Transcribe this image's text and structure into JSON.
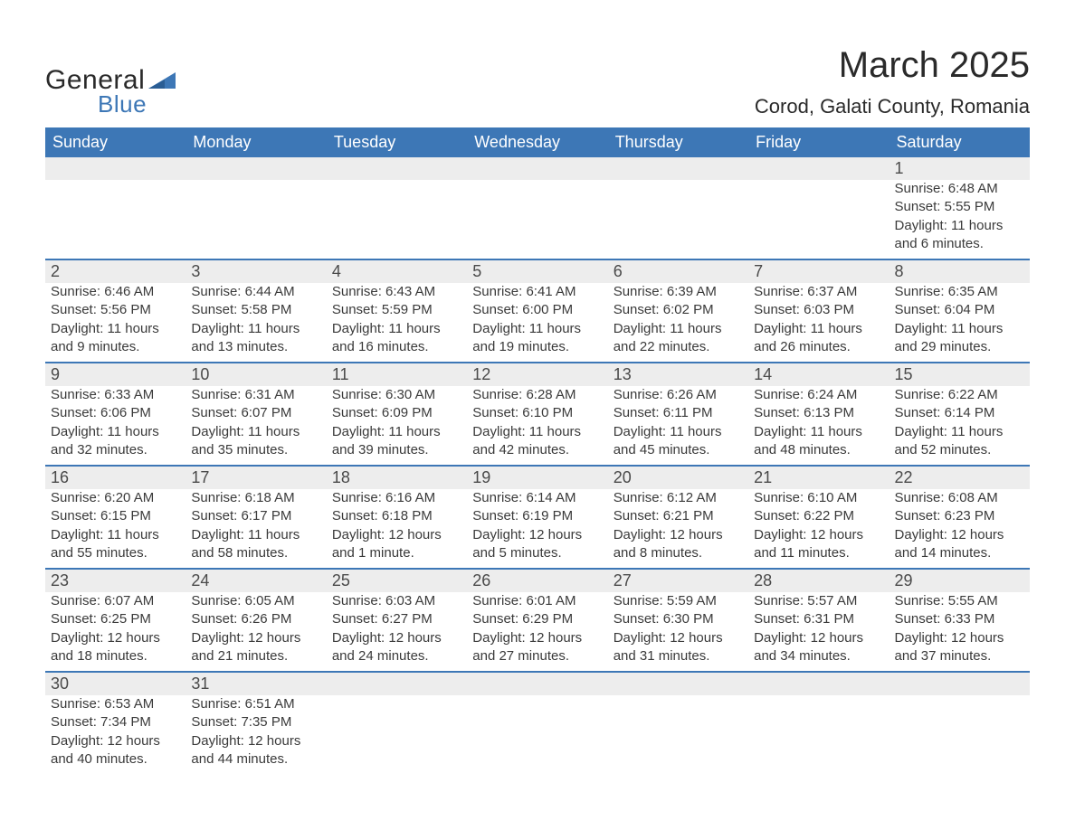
{
  "brand": {
    "word1": "General",
    "word2": "Blue",
    "accent": "#3d77b6"
  },
  "header": {
    "title": "March 2025",
    "location": "Corod, Galati County, Romania",
    "title_fontsize": 40,
    "location_fontsize": 22,
    "text_color": "#2a2a2a"
  },
  "calendar": {
    "header_bg": "#3d77b6",
    "header_text_color": "#ffffff",
    "numrow_bg": "#ededed",
    "row_divider_color": "#3d77b6",
    "cell_text_color": "#3a3a3a",
    "daynum_fontsize": 18,
    "body_fontsize": 15,
    "columns": [
      "Sunday",
      "Monday",
      "Tuesday",
      "Wednesday",
      "Thursday",
      "Friday",
      "Saturday"
    ],
    "weeks": [
      [
        null,
        null,
        null,
        null,
        null,
        null,
        {
          "n": "1",
          "sunrise": "Sunrise: 6:48 AM",
          "sunset": "Sunset: 5:55 PM",
          "dl1": "Daylight: 11 hours",
          "dl2": "and 6 minutes."
        }
      ],
      [
        {
          "n": "2",
          "sunrise": "Sunrise: 6:46 AM",
          "sunset": "Sunset: 5:56 PM",
          "dl1": "Daylight: 11 hours",
          "dl2": "and 9 minutes."
        },
        {
          "n": "3",
          "sunrise": "Sunrise: 6:44 AM",
          "sunset": "Sunset: 5:58 PM",
          "dl1": "Daylight: 11 hours",
          "dl2": "and 13 minutes."
        },
        {
          "n": "4",
          "sunrise": "Sunrise: 6:43 AM",
          "sunset": "Sunset: 5:59 PM",
          "dl1": "Daylight: 11 hours",
          "dl2": "and 16 minutes."
        },
        {
          "n": "5",
          "sunrise": "Sunrise: 6:41 AM",
          "sunset": "Sunset: 6:00 PM",
          "dl1": "Daylight: 11 hours",
          "dl2": "and 19 minutes."
        },
        {
          "n": "6",
          "sunrise": "Sunrise: 6:39 AM",
          "sunset": "Sunset: 6:02 PM",
          "dl1": "Daylight: 11 hours",
          "dl2": "and 22 minutes."
        },
        {
          "n": "7",
          "sunrise": "Sunrise: 6:37 AM",
          "sunset": "Sunset: 6:03 PM",
          "dl1": "Daylight: 11 hours",
          "dl2": "and 26 minutes."
        },
        {
          "n": "8",
          "sunrise": "Sunrise: 6:35 AM",
          "sunset": "Sunset: 6:04 PM",
          "dl1": "Daylight: 11 hours",
          "dl2": "and 29 minutes."
        }
      ],
      [
        {
          "n": "9",
          "sunrise": "Sunrise: 6:33 AM",
          "sunset": "Sunset: 6:06 PM",
          "dl1": "Daylight: 11 hours",
          "dl2": "and 32 minutes."
        },
        {
          "n": "10",
          "sunrise": "Sunrise: 6:31 AM",
          "sunset": "Sunset: 6:07 PM",
          "dl1": "Daylight: 11 hours",
          "dl2": "and 35 minutes."
        },
        {
          "n": "11",
          "sunrise": "Sunrise: 6:30 AM",
          "sunset": "Sunset: 6:09 PM",
          "dl1": "Daylight: 11 hours",
          "dl2": "and 39 minutes."
        },
        {
          "n": "12",
          "sunrise": "Sunrise: 6:28 AM",
          "sunset": "Sunset: 6:10 PM",
          "dl1": "Daylight: 11 hours",
          "dl2": "and 42 minutes."
        },
        {
          "n": "13",
          "sunrise": "Sunrise: 6:26 AM",
          "sunset": "Sunset: 6:11 PM",
          "dl1": "Daylight: 11 hours",
          "dl2": "and 45 minutes."
        },
        {
          "n": "14",
          "sunrise": "Sunrise: 6:24 AM",
          "sunset": "Sunset: 6:13 PM",
          "dl1": "Daylight: 11 hours",
          "dl2": "and 48 minutes."
        },
        {
          "n": "15",
          "sunrise": "Sunrise: 6:22 AM",
          "sunset": "Sunset: 6:14 PM",
          "dl1": "Daylight: 11 hours",
          "dl2": "and 52 minutes."
        }
      ],
      [
        {
          "n": "16",
          "sunrise": "Sunrise: 6:20 AM",
          "sunset": "Sunset: 6:15 PM",
          "dl1": "Daylight: 11 hours",
          "dl2": "and 55 minutes."
        },
        {
          "n": "17",
          "sunrise": "Sunrise: 6:18 AM",
          "sunset": "Sunset: 6:17 PM",
          "dl1": "Daylight: 11 hours",
          "dl2": "and 58 minutes."
        },
        {
          "n": "18",
          "sunrise": "Sunrise: 6:16 AM",
          "sunset": "Sunset: 6:18 PM",
          "dl1": "Daylight: 12 hours",
          "dl2": "and 1 minute."
        },
        {
          "n": "19",
          "sunrise": "Sunrise: 6:14 AM",
          "sunset": "Sunset: 6:19 PM",
          "dl1": "Daylight: 12 hours",
          "dl2": "and 5 minutes."
        },
        {
          "n": "20",
          "sunrise": "Sunrise: 6:12 AM",
          "sunset": "Sunset: 6:21 PM",
          "dl1": "Daylight: 12 hours",
          "dl2": "and 8 minutes."
        },
        {
          "n": "21",
          "sunrise": "Sunrise: 6:10 AM",
          "sunset": "Sunset: 6:22 PM",
          "dl1": "Daylight: 12 hours",
          "dl2": "and 11 minutes."
        },
        {
          "n": "22",
          "sunrise": "Sunrise: 6:08 AM",
          "sunset": "Sunset: 6:23 PM",
          "dl1": "Daylight: 12 hours",
          "dl2": "and 14 minutes."
        }
      ],
      [
        {
          "n": "23",
          "sunrise": "Sunrise: 6:07 AM",
          "sunset": "Sunset: 6:25 PM",
          "dl1": "Daylight: 12 hours",
          "dl2": "and 18 minutes."
        },
        {
          "n": "24",
          "sunrise": "Sunrise: 6:05 AM",
          "sunset": "Sunset: 6:26 PM",
          "dl1": "Daylight: 12 hours",
          "dl2": "and 21 minutes."
        },
        {
          "n": "25",
          "sunrise": "Sunrise: 6:03 AM",
          "sunset": "Sunset: 6:27 PM",
          "dl1": "Daylight: 12 hours",
          "dl2": "and 24 minutes."
        },
        {
          "n": "26",
          "sunrise": "Sunrise: 6:01 AM",
          "sunset": "Sunset: 6:29 PM",
          "dl1": "Daylight: 12 hours",
          "dl2": "and 27 minutes."
        },
        {
          "n": "27",
          "sunrise": "Sunrise: 5:59 AM",
          "sunset": "Sunset: 6:30 PM",
          "dl1": "Daylight: 12 hours",
          "dl2": "and 31 minutes."
        },
        {
          "n": "28",
          "sunrise": "Sunrise: 5:57 AM",
          "sunset": "Sunset: 6:31 PM",
          "dl1": "Daylight: 12 hours",
          "dl2": "and 34 minutes."
        },
        {
          "n": "29",
          "sunrise": "Sunrise: 5:55 AM",
          "sunset": "Sunset: 6:33 PM",
          "dl1": "Daylight: 12 hours",
          "dl2": "and 37 minutes."
        }
      ],
      [
        {
          "n": "30",
          "sunrise": "Sunrise: 6:53 AM",
          "sunset": "Sunset: 7:34 PM",
          "dl1": "Daylight: 12 hours",
          "dl2": "and 40 minutes."
        },
        {
          "n": "31",
          "sunrise": "Sunrise: 6:51 AM",
          "sunset": "Sunset: 7:35 PM",
          "dl1": "Daylight: 12 hours",
          "dl2": "and 44 minutes."
        },
        null,
        null,
        null,
        null,
        null
      ]
    ]
  }
}
